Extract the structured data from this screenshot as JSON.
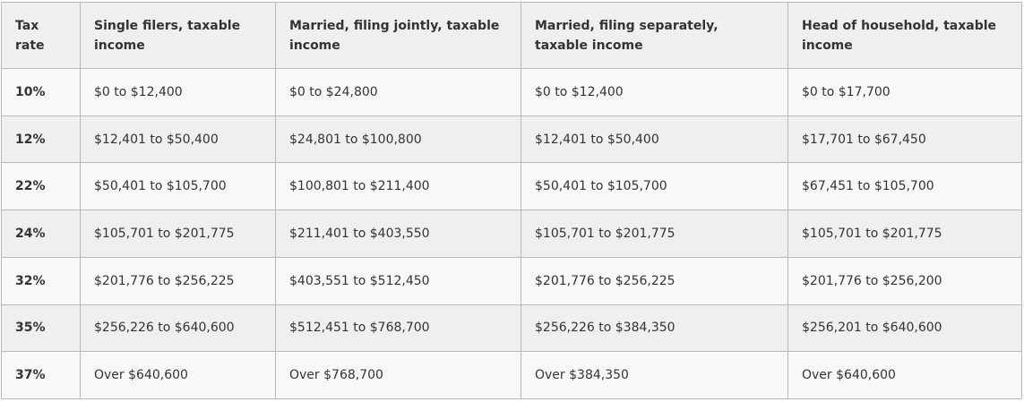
{
  "table": {
    "headers": [
      "Tax rate",
      "Single filers, taxable income",
      "Married, filing jointly, taxable income",
      "Married, filing separately, taxable income",
      "Head of household, taxable income"
    ],
    "rows": [
      [
        "10%",
        "$0 to $12,400",
        "$0 to $24,800",
        "$0 to $12,400",
        "$0 to $17,700"
      ],
      [
        "12%",
        "$12,401 to $50,400",
        "$24,801 to $100,800",
        "$12,401 to $50,400",
        "$17,701 to $67,450"
      ],
      [
        "22%",
        "$50,401 to $105,700",
        "$100,801 to $211,400",
        "$50,401 to $105,700",
        "$67,451 to $105,700"
      ],
      [
        "24%",
        "$105,701 to $201,775",
        "$211,401 to $403,550",
        "$105,701 to $201,775",
        "$105,701 to $201,775"
      ],
      [
        "32%",
        "$201,776 to $256,225",
        "$403,551 to $512,450",
        "$201,776 to $256,225",
        "$201,776 to $256,200"
      ],
      [
        "35%",
        "$256,226 to $640,600",
        "$512,451 to $768,700",
        "$256,226 to $384,350",
        "$256,201 to $640,600"
      ],
      [
        "37%",
        "Over $640,600",
        "Over $768,700",
        "Over $384,350",
        "Over $640,600"
      ]
    ]
  }
}
